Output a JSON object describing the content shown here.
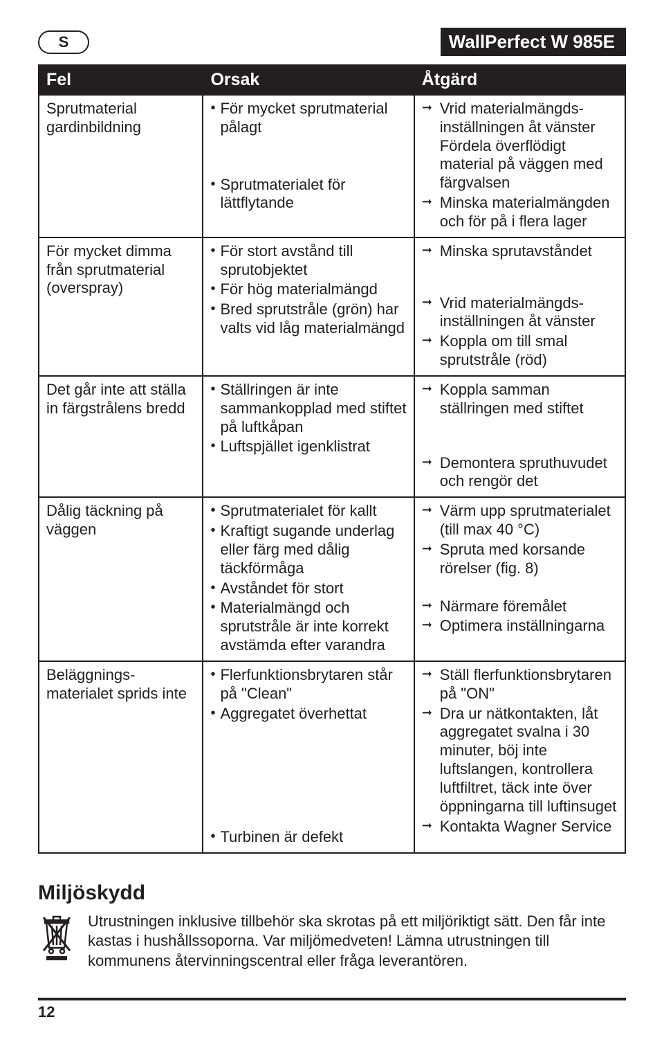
{
  "header": {
    "language_badge": "S",
    "product_title": "WallPerfect W 985E"
  },
  "table": {
    "headers": {
      "fel": "Fel",
      "orsak": "Orsak",
      "atgard": "Åtgärd"
    },
    "rows": [
      {
        "fel": "Sprutmaterial gardinbildning",
        "orsak": [
          "För mycket sprutmaterial pålagt",
          "Sprutmaterialet för lättflytande"
        ],
        "atgard": [
          "Vrid materialmängds­inställningen åt vänster Fördela överflödigt material på väggen med färgvalsen",
          "Minska materialmängden och för på i flera lager"
        ]
      },
      {
        "fel": "För mycket dimma från sprutmaterial (overspray)",
        "orsak": [
          "För stort avstånd till sprutobjektet",
          "För hög materialmängd",
          "Bred sprutstråle (grön) har valts vid låg materialmängd"
        ],
        "atgard": [
          "Minska sprutavståndet",
          "Vrid materialmängds­inställningen åt vänster",
          "Koppla om till smal sprutstråle (röd)"
        ],
        "atgard_gap_after": 0
      },
      {
        "fel": "Det går inte att ställa in färgstrålens bredd",
        "orsak": [
          "Ställringen är inte sammankopplad med stiftet på luftkåpan",
          "Luftspjället igenklistrat"
        ],
        "atgard": [
          "Koppla samman ställringen med stiftet",
          "Demontera spruthuvudet och rengör det"
        ],
        "atgard_gap_after": 0
      },
      {
        "fel": "Dålig täckning på väggen",
        "orsak": [
          "Sprutmaterialet för kallt",
          "Kraftigt sugande underlag eller färg med dålig täckförmåga",
          "Avståndet för stort",
          "Materialmängd och sprutstråle är inte korrekt avstämda efter varandra"
        ],
        "atgard": [
          "Värm upp sprutmaterialet (till max 40 °C)",
          "Spruta med korsande rörelser (fig. 8)",
          "Närmare föremålet",
          "Optimera inställningarna"
        ],
        "atgard_gap_after": 1
      },
      {
        "fel": "Beläggnings­materialet sprids inte",
        "orsak": [
          "Flerfunktionsbrytaren står på \"Clean\"",
          "Aggregatet överhettat",
          "Turbinen är defekt"
        ],
        "orsak_gap_after": 1,
        "atgard": [
          "Ställ flerfunktionsbrytaren på \"ON\"",
          "Dra ur nätkontakten, låt aggregatet svalna i 30 minuter, böj inte luftslangen, kontrollera luftfiltret, täck inte över öppningarna till luftinsuget",
          "Kontakta Wagner Service"
        ]
      }
    ]
  },
  "environment": {
    "heading": "Miljöskydd",
    "text": "Utrustningen inklusive tillbehör ska skrotas på ett miljöriktigt sätt. Den får inte kastas i hushållssoporna. Var miljömedveten! Lämna utrustningen till kommunens återvinningscentral eller fråga leverantören."
  },
  "page_number": "12",
  "colors": {
    "ink": "#231f20",
    "paper": "#ffffff"
  }
}
